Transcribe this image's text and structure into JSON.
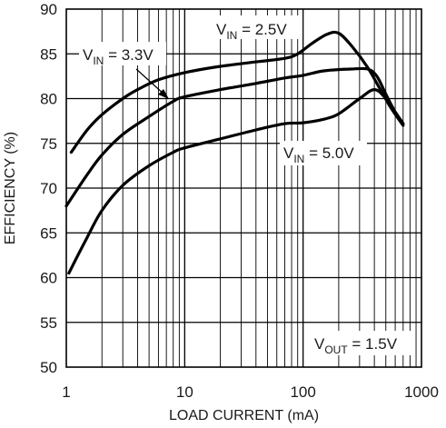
{
  "chart_data": {
    "type": "line",
    "x_scale": "log",
    "xlim": [
      1,
      1000
    ],
    "ylim": [
      50,
      90
    ],
    "grid": true,
    "xlabel": "LOAD CURRENT (mA)",
    "ylabel": "EFFICIENCY (%)",
    "x_tick_labels": [
      "1",
      "10",
      "100",
      "1000"
    ],
    "y_tick_labels": [
      "50",
      "55",
      "60",
      "65",
      "70",
      "75",
      "80",
      "85",
      "90"
    ],
    "series": [
      {
        "name": "VIN = 2.5V",
        "points": [
          [
            1.1,
            74.0
          ],
          [
            1.5,
            76.5
          ],
          [
            2,
            78.2
          ],
          [
            3,
            80.0
          ],
          [
            4,
            81.0
          ],
          [
            6,
            82.1
          ],
          [
            10,
            82.9
          ],
          [
            20,
            83.6
          ],
          [
            40,
            84.1
          ],
          [
            70,
            84.5
          ],
          [
            90,
            85.0
          ],
          [
            120,
            86.2
          ],
          [
            160,
            87.2
          ],
          [
            200,
            87.3
          ],
          [
            260,
            85.8
          ],
          [
            350,
            83.5
          ],
          [
            450,
            81.0
          ],
          [
            550,
            79.0
          ],
          [
            700,
            77.0
          ]
        ]
      },
      {
        "name": "VIN = 3.3V",
        "points": [
          [
            1.0,
            68.0
          ],
          [
            1.5,
            71.5
          ],
          [
            2,
            73.7
          ],
          [
            3,
            76.0
          ],
          [
            5,
            78.0
          ],
          [
            8,
            79.7
          ],
          [
            10,
            80.2
          ],
          [
            20,
            81.0
          ],
          [
            40,
            81.7
          ],
          [
            70,
            82.3
          ],
          [
            100,
            82.6
          ],
          [
            150,
            83.1
          ],
          [
            250,
            83.3
          ],
          [
            350,
            83.3
          ],
          [
            420,
            82.5
          ],
          [
            500,
            80.5
          ],
          [
            600,
            78.5
          ],
          [
            700,
            77.2
          ]
        ]
      },
      {
        "name": "VIN = 5.0V",
        "points": [
          [
            1.05,
            60.5
          ],
          [
            1.5,
            64.5
          ],
          [
            2,
            67.5
          ],
          [
            3,
            70.3
          ],
          [
            5,
            72.5
          ],
          [
            8,
            74.0
          ],
          [
            10,
            74.5
          ],
          [
            20,
            75.5
          ],
          [
            40,
            76.5
          ],
          [
            70,
            77.2
          ],
          [
            100,
            77.3
          ],
          [
            150,
            77.7
          ],
          [
            200,
            78.3
          ],
          [
            300,
            80.0
          ],
          [
            400,
            81.0
          ],
          [
            500,
            80.0
          ],
          [
            600,
            78.5
          ],
          [
            700,
            77.2
          ]
        ]
      }
    ],
    "annotations": [
      {
        "main": "V",
        "sub": "IN",
        "rest": " = 2.5V"
      },
      {
        "main": "V",
        "sub": "IN",
        "rest": " = 3.3V"
      },
      {
        "main": "V",
        "sub": "IN",
        "rest": " = 5.0V"
      },
      {
        "main": "V",
        "sub": "OUT",
        "rest": " = 1.5V"
      }
    ]
  }
}
